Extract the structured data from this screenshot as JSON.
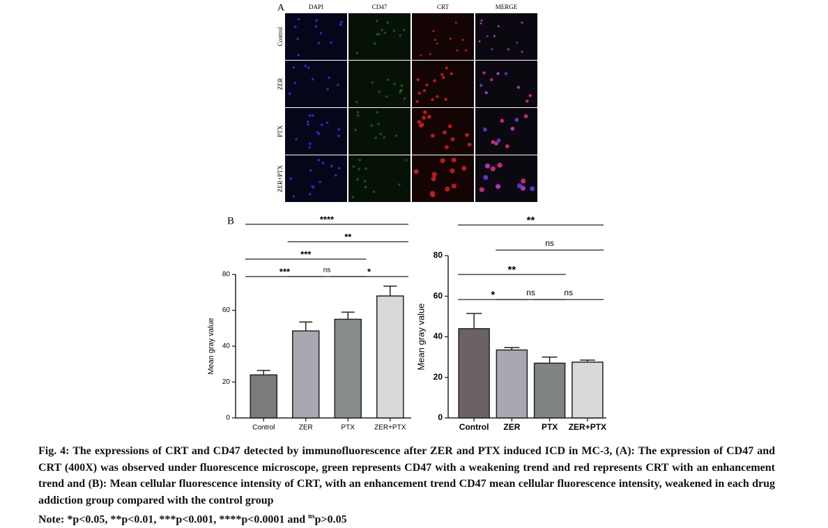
{
  "panel_a": {
    "label": "A",
    "columns": [
      "DAPI",
      "CD47",
      "CRT",
      "MERGE"
    ],
    "rows": [
      "Control",
      "ZER",
      "PTX",
      "ZER+PTX"
    ]
  },
  "panel_b": "B",
  "chart_data": [
    {
      "type": "bar",
      "ylabel": "Mean gray value",
      "categories": [
        "Control",
        "ZER",
        "PTX",
        "ZER+PTX"
      ],
      "values": [
        24,
        48.5,
        55,
        68
      ],
      "errors": [
        2.5,
        5,
        4,
        5.5
      ],
      "colors": [
        "#7b7b7b",
        "#a9a8b1",
        "#878b8b",
        "#d9d9d9"
      ],
      "ylim": [
        0,
        80
      ],
      "yticks": [
        0,
        20,
        40,
        60,
        80
      ],
      "brackets": [
        {
          "from": "Control",
          "to": "ZER",
          "label": "***"
        },
        {
          "from": "ZER",
          "to": "PTX",
          "label": "ns"
        },
        {
          "from": "PTX",
          "to": "ZER+PTX",
          "label": "*"
        },
        {
          "from": "Control",
          "to": "PTX",
          "label": "***"
        },
        {
          "from": "ZER",
          "to": "ZER+PTX",
          "label": "**"
        },
        {
          "from": "Control",
          "to": "ZER+PTX",
          "label": "****"
        }
      ]
    },
    {
      "type": "bar",
      "ylabel": "Mean gray value",
      "categories": [
        "Control",
        "ZER",
        "PTX",
        "ZER+PTX"
      ],
      "values": [
        44,
        33.5,
        27,
        27.5
      ],
      "errors": [
        7.5,
        1.2,
        3,
        1
      ],
      "colors": [
        "#6b6363",
        "#a9a8b1",
        "#7f8585",
        "#d9d9d9"
      ],
      "ylim": [
        0,
        80
      ],
      "yticks": [
        0,
        20,
        40,
        60,
        80
      ],
      "brackets": [
        {
          "from": "Control",
          "to": "ZER",
          "label": "*"
        },
        {
          "from": "ZER",
          "to": "PTX",
          "label": "ns"
        },
        {
          "from": "PTX",
          "to": "ZER+PTX",
          "label": "ns"
        },
        {
          "from": "Control",
          "to": "PTX",
          "label": "**"
        },
        {
          "from": "ZER",
          "to": "ZER+PTX",
          "label": "ns"
        },
        {
          "from": "Control",
          "to": "ZER+PTX",
          "label": "**"
        }
      ]
    }
  ],
  "caption": {
    "text": "Fig. 4: The expressions of CRT and CD47 detected by immunofluorescence after ZER and PTX induced ICD in MC-3, (A): The expression of CD47 and CRT (400X) was observed under fluorescence microscope, green represents CD47 with a weakening trend and red represents CRT with an enhancement trend and (B): Mean cellular fluorescence intensity of CRT, with an enhancement trend CD47 mean cellular fluorescence intensity, weakened in each drug addiction group compared with the control group",
    "note_prefix": "Note: *p<0.05, **p<0.01, ***p<0.001, ****p<0.0001 and ",
    "note_sup": "ns",
    "note_suffix": "p>0.05"
  }
}
